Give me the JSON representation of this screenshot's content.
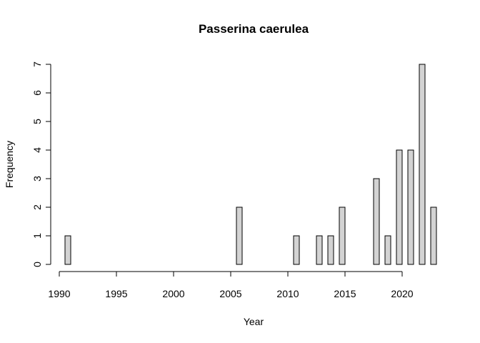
{
  "chart_data": {
    "type": "bar",
    "title": "Passerina caerulea",
    "xlabel": "Year",
    "ylabel": "Frequency",
    "x": [
      1991,
      1992,
      1993,
      1994,
      1995,
      1996,
      1997,
      1998,
      1999,
      2000,
      2001,
      2002,
      2003,
      2004,
      2005,
      2006,
      2007,
      2008,
      2009,
      2010,
      2011,
      2012,
      2013,
      2014,
      2015,
      2016,
      2017,
      2018,
      2019,
      2020,
      2021,
      2022,
      2023
    ],
    "values": [
      1,
      0,
      0,
      0,
      0,
      0,
      0,
      0,
      0,
      0,
      0,
      0,
      0,
      0,
      0,
      2,
      0,
      0,
      0,
      0,
      1,
      0,
      1,
      1,
      2,
      0,
      0,
      3,
      1,
      4,
      4,
      7,
      2
    ],
    "xlim": [
      1990,
      2023
    ],
    "ylim": [
      0,
      7
    ],
    "xticks": [
      "1990",
      "1995",
      "2000",
      "2005",
      "2010",
      "2015",
      "2020"
    ],
    "yticks": [
      "0",
      "1",
      "2",
      "3",
      "4",
      "5",
      "6",
      "7"
    ],
    "grid": false,
    "bar_color": "#d3d3d3",
    "edge_color": "#000000"
  }
}
